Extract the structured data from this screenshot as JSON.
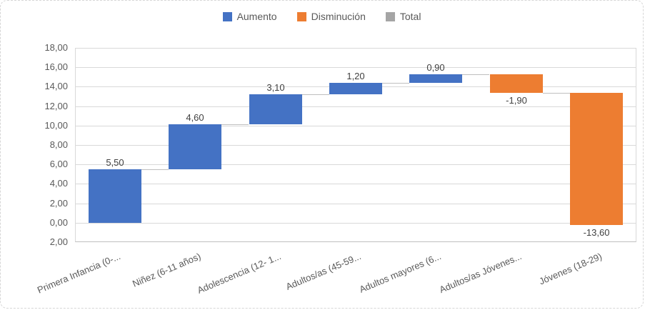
{
  "chart_data": {
    "type": "bar",
    "subtype": "waterfall",
    "title": "",
    "xlabel": "",
    "ylabel": "",
    "grid": true,
    "legend_position": "top",
    "legend": [
      {
        "label": "Aumento",
        "color": "#4472C4"
      },
      {
        "label": "Disminución",
        "color": "#ED7D31"
      },
      {
        "label": "Total",
        "color": "#A5A5A5"
      }
    ],
    "categories": [
      "Primera Infancia (0-...",
      "Niñez (6-11 años)",
      "Adolescencia (12- 1...",
      "Adultos/as (45-59...",
      "Adultos mayores (6...",
      "Adultos/as Jóvenes...",
      "Jóvenes (18-29)"
    ],
    "values": [
      5.5,
      4.6,
      3.1,
      1.2,
      0.9,
      -1.9,
      -13.6
    ],
    "value_labels": [
      "5,50",
      "4,60",
      "3,10",
      "1,20",
      "0,90",
      "-1,90",
      "-13,60"
    ],
    "running_totals": [
      5.5,
      10.1,
      13.2,
      14.4,
      15.3,
      13.4,
      -0.2
    ],
    "y_axis": {
      "min": -2,
      "max": 18,
      "step": 2,
      "tick_labels": [
        "18,00",
        "16,00",
        "14,00",
        "12,00",
        "10,00",
        "8,00",
        "6,00",
        "4,00",
        "2,00",
        "0,00",
        "2,00"
      ]
    },
    "colors": {
      "increase": "#4472C4",
      "decrease": "#ED7D31",
      "total": "#A5A5A5",
      "gridline": "#d9d9d9",
      "connector": "#bfbfbf",
      "axis_text": "#595959",
      "label_text": "#404040"
    }
  }
}
